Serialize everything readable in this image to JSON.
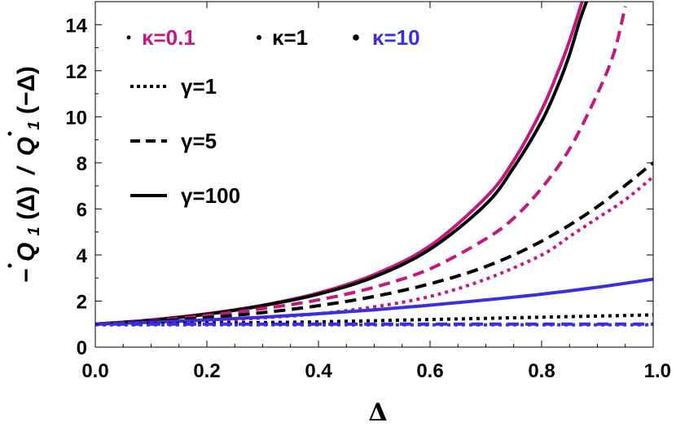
{
  "chart_data": {
    "type": "line",
    "xlabel": "Δ",
    "ylabel_parts": {
      "prefix": "−",
      "num_var": "Q",
      "num_sub": "1",
      "num_arg": "(Δ)",
      "slash": "/",
      "den_var": "Q",
      "den_sub": "1",
      "den_arg": "(−Δ)"
    },
    "xlim": [
      0.0,
      1.0
    ],
    "ylim": [
      0,
      15
    ],
    "xticks": [
      "0.0",
      "0.2",
      "0.4",
      "0.6",
      "0.8",
      "1.0"
    ],
    "yticks": [
      "0",
      "2",
      "4",
      "6",
      "8",
      "10",
      "12",
      "14"
    ],
    "colors": {
      "kappa_0_1": "#c2187f",
      "kappa_1": "#000000",
      "kappa_10": "#3a2ee0"
    },
    "legend_kappa": [
      {
        "label": "κ=0.1",
        "color": "#c2187f",
        "dot_size": 2.5
      },
      {
        "label": "κ=1",
        "color": "#000000",
        "dot_size": 3.0
      },
      {
        "label": "κ=10",
        "color": "#3a2ee0",
        "dot_size": 3.8
      }
    ],
    "legend_gamma": [
      {
        "label": "γ=1",
        "dash": "dotted"
      },
      {
        "label": "γ=5",
        "dash": "dashed"
      },
      {
        "label": "γ=100",
        "dash": "solid"
      }
    ],
    "series": [
      {
        "kappa": "0.1",
        "gamma": "100",
        "color": "#c2187f",
        "dash": "solid",
        "x": [
          0,
          0.1,
          0.2,
          0.3,
          0.4,
          0.5,
          0.6,
          0.7,
          0.75,
          0.8,
          0.83,
          0.85,
          0.87,
          0.88
        ],
        "y": [
          1.0,
          1.18,
          1.45,
          1.82,
          2.35,
          3.15,
          4.4,
          6.5,
          8.1,
          10.3,
          12.0,
          13.3,
          14.8,
          15.6
        ]
      },
      {
        "kappa": "1",
        "gamma": "100",
        "color": "#000000",
        "dash": "solid",
        "x": [
          0,
          0.1,
          0.2,
          0.3,
          0.4,
          0.5,
          0.6,
          0.7,
          0.75,
          0.8,
          0.83,
          0.85,
          0.87,
          0.89
        ],
        "y": [
          1.0,
          1.17,
          1.43,
          1.8,
          2.3,
          3.05,
          4.25,
          6.2,
          7.8,
          9.8,
          11.4,
          12.7,
          14.3,
          15.6
        ]
      },
      {
        "kappa": "0.1",
        "gamma": "5",
        "color": "#c2187f",
        "dash": "dashed",
        "x": [
          0,
          0.1,
          0.2,
          0.3,
          0.4,
          0.5,
          0.6,
          0.7,
          0.75,
          0.8,
          0.85,
          0.9,
          0.93,
          0.95
        ],
        "y": [
          1.0,
          1.15,
          1.37,
          1.67,
          2.05,
          2.6,
          3.4,
          4.7,
          5.6,
          6.9,
          8.6,
          11.0,
          12.8,
          14.8
        ]
      },
      {
        "kappa": "0.1",
        "gamma": "1",
        "color": "#c2187f",
        "dash": "dotted",
        "x": [
          0,
          0.1,
          0.2,
          0.3,
          0.4,
          0.5,
          0.6,
          0.7,
          0.8,
          0.85,
          0.9,
          0.95,
          1.0
        ],
        "y": [
          1.0,
          1.05,
          1.13,
          1.27,
          1.45,
          1.75,
          2.2,
          2.95,
          4.0,
          4.8,
          5.6,
          6.4,
          7.4
        ]
      },
      {
        "kappa": "1",
        "gamma": "5",
        "color": "#000000",
        "dash": "dashed",
        "x": [
          0,
          0.1,
          0.2,
          0.3,
          0.4,
          0.5,
          0.6,
          0.7,
          0.8,
          0.9,
          1.0
        ],
        "y": [
          1.0,
          1.12,
          1.28,
          1.5,
          1.8,
          2.2,
          2.75,
          3.5,
          4.6,
          6.1,
          8.0
        ]
      },
      {
        "kappa": "10",
        "gamma": "100",
        "color": "#3a2ee0",
        "dash": "solid",
        "x": [
          0,
          0.1,
          0.2,
          0.3,
          0.4,
          0.5,
          0.6,
          0.7,
          0.8,
          0.9,
          1.0
        ],
        "y": [
          1.0,
          1.08,
          1.18,
          1.3,
          1.45,
          1.62,
          1.82,
          2.05,
          2.3,
          2.6,
          2.95
        ]
      },
      {
        "kappa": "1",
        "gamma": "1",
        "color": "#000000",
        "dash": "dotted",
        "x": [
          0,
          0.2,
          0.4,
          0.6,
          0.8,
          1.0
        ],
        "y": [
          1.0,
          1.04,
          1.1,
          1.2,
          1.3,
          1.4
        ]
      },
      {
        "kappa": "10",
        "gamma": "5",
        "color": "#3a2ee0",
        "dash": "dashed",
        "x": [
          0,
          0.5,
          1.0
        ],
        "y": [
          1.0,
          1.0,
          1.0
        ]
      },
      {
        "kappa": "10",
        "gamma": "1",
        "color": "#3a2ee0",
        "dash": "dotted",
        "x": [
          0,
          0.5,
          1.0
        ],
        "y": [
          0.97,
          0.97,
          0.97
        ]
      }
    ]
  }
}
